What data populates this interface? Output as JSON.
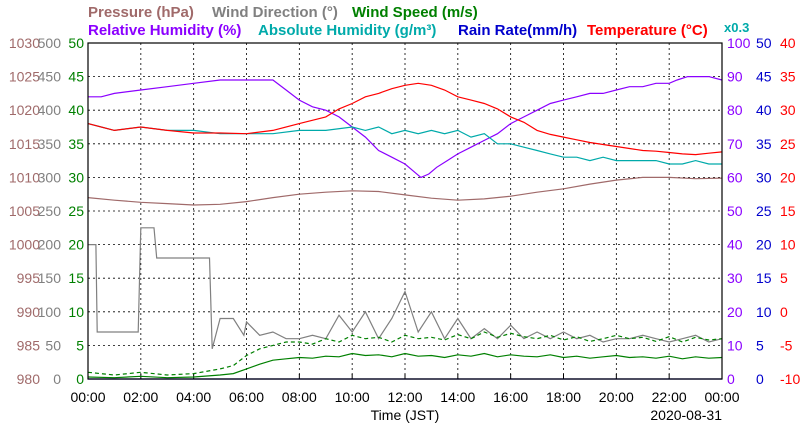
{
  "chart_data": {
    "type": "line",
    "date": "2020-08-31",
    "xlabel": "Time (JST)",
    "x_ticks": [
      "00:00",
      "02:00",
      "04:00",
      "06:00",
      "08:00",
      "10:00",
      "12:00",
      "14:00",
      "16:00",
      "18:00",
      "20:00",
      "22:00",
      "00:00"
    ],
    "xlim": [
      0,
      24
    ],
    "grid": true,
    "legend": {
      "row1": [
        {
          "label": "Pressure (hPa)",
          "color": "#a06a6a"
        },
        {
          "label": "Wind Direction (°)",
          "color": "#808080"
        },
        {
          "label": "Wind Speed (m/s)",
          "color": "#008000"
        }
      ],
      "row2": [
        {
          "label": "Relative Humidity (%)",
          "color": "#8b00ff"
        },
        {
          "label": "Absolute Humidity (g/m³)",
          "color": "#00aaaa"
        },
        {
          "label": "Rain Rate(mm/h)",
          "color": "#0000cc"
        },
        {
          "label": "Temperature (°C)",
          "color": "#ff0000"
        }
      ],
      "extra": {
        "label": "x0.3",
        "color": "#00aaaa"
      }
    },
    "axes": {
      "pressure": {
        "label": "Pressure (hPa)",
        "ticks": [
          "980",
          "985",
          "990",
          "995",
          "1000",
          "1005",
          "1010",
          "1015",
          "1020",
          "1025",
          "1030"
        ],
        "lim": [
          980,
          1030
        ],
        "color": "#a06a6a"
      },
      "wind_dir": {
        "label": "Wind Direction (°)",
        "ticks": [
          "0",
          "50",
          "100",
          "150",
          "200",
          "250",
          "300",
          "350",
          "400",
          "450",
          "500"
        ],
        "lim": [
          0,
          500
        ],
        "color": "#808080"
      },
      "wind_speed": {
        "label": "Wind Speed (m/s)",
        "ticks": [
          "0",
          "5",
          "10",
          "15",
          "20",
          "25",
          "30",
          "35",
          "40",
          "45",
          "50"
        ],
        "lim": [
          0,
          50
        ],
        "color": "#008000"
      },
      "humidity": {
        "label": "Relative Humidity (%)",
        "ticks": [
          "0",
          "10",
          "20",
          "30",
          "40",
          "50",
          "60",
          "70",
          "80",
          "90",
          "100"
        ],
        "lim": [
          0,
          100
        ],
        "color": "#8b00ff"
      },
      "rain": {
        "label": "Rain Rate(mm/h)",
        "ticks": [
          "0",
          "5",
          "10",
          "15",
          "20",
          "25",
          "30",
          "35",
          "40",
          "45",
          "50"
        ],
        "lim": [
          0,
          50
        ],
        "color": "#0000cc"
      },
      "temperature": {
        "label": "Temperature (°C)",
        "ticks": [
          "-10",
          "-5",
          "0",
          "5",
          "10",
          "15",
          "20",
          "25",
          "30",
          "35",
          "40"
        ],
        "lim": [
          -10,
          40
        ],
        "color": "#ff0000"
      }
    },
    "series": [
      {
        "name": "Pressure (hPa)",
        "axis": "pressure",
        "color": "#a06a6a",
        "x": [
          0,
          1,
          2,
          3,
          4,
          5,
          6,
          7,
          8,
          9,
          10,
          11,
          12,
          13,
          14,
          15,
          16,
          17,
          18,
          19,
          20,
          21,
          22,
          23,
          24
        ],
        "y": [
          1007,
          1006.6,
          1006.3,
          1006.1,
          1005.9,
          1006,
          1006.4,
          1007,
          1007.5,
          1007.8,
          1008,
          1007.9,
          1007.4,
          1006.9,
          1006.6,
          1006.8,
          1007.2,
          1007.8,
          1008.3,
          1009,
          1009.6,
          1010,
          1010,
          1009.8,
          1009.9
        ]
      },
      {
        "name": "Wind Direction (°)",
        "axis": "wind_dir",
        "color": "#808080",
        "x": [
          0,
          0.3,
          0.35,
          1,
          1.9,
          2,
          2.5,
          2.6,
          3,
          4,
          4.6,
          4.7,
          5.0,
          5.5,
          5.9,
          6,
          6.5,
          7,
          7.5,
          8,
          8.5,
          9,
          9.5,
          10,
          10.5,
          11,
          11.5,
          12,
          12.5,
          13,
          13.5,
          14,
          14.5,
          15,
          15.5,
          16,
          16.5,
          17,
          17.5,
          18,
          18.5,
          19,
          19.5,
          20,
          20.5,
          21,
          21.5,
          22,
          22.5,
          23,
          23.5,
          24
        ],
        "y": [
          200,
          200,
          70,
          70,
          70,
          225,
          225,
          180,
          180,
          180,
          180,
          45,
          90,
          90,
          65,
          85,
          65,
          70,
          60,
          60,
          65,
          60,
          95,
          70,
          100,
          60,
          90,
          130,
          70,
          100,
          60,
          90,
          60,
          75,
          60,
          80,
          60,
          70,
          60,
          70,
          60,
          65,
          55,
          60,
          60,
          65,
          60,
          55,
          60,
          65,
          55,
          60
        ]
      },
      {
        "name": "Wind Speed (m/s)",
        "axis": "wind_speed",
        "color": "#008000",
        "x": [
          0,
          1,
          2,
          3,
          4,
          5,
          5.5,
          6,
          6.5,
          7,
          7.5,
          8,
          8.5,
          9,
          9.5,
          10,
          10.5,
          11,
          11.5,
          12,
          12.5,
          13,
          13.5,
          14,
          14.5,
          15,
          15.5,
          16,
          16.5,
          17,
          17.5,
          18,
          18.5,
          19,
          19.5,
          20,
          20.5,
          21,
          21.5,
          22,
          22.5,
          23,
          23.5,
          24
        ],
        "y": [
          0.3,
          0.2,
          0.4,
          0.2,
          0.3,
          0.6,
          0.8,
          1.5,
          2.2,
          2.8,
          3,
          3.2,
          3.1,
          3.4,
          3.3,
          3.8,
          3.5,
          3.6,
          3.3,
          3.8,
          3.4,
          3.5,
          3.2,
          3.6,
          3.4,
          3.8,
          3.3,
          3.6,
          3.4,
          3.3,
          3.6,
          3.2,
          3.4,
          3.1,
          3.3,
          3.5,
          3.2,
          3.3,
          3.1,
          3.4,
          3.0,
          3.3,
          3.1,
          3.2
        ]
      },
      {
        "name": "Wind Speed Max (m/s)",
        "axis": "wind_speed",
        "color": "#008000",
        "dashed": true,
        "x": [
          0,
          1,
          2,
          3,
          4,
          5,
          5.5,
          6,
          6.5,
          7,
          7.5,
          8,
          8.5,
          9,
          9.5,
          10,
          10.5,
          11,
          11.5,
          12,
          12.5,
          13,
          13.5,
          14,
          14.5,
          15,
          15.5,
          16,
          16.5,
          17,
          17.5,
          18,
          18.5,
          19,
          19.5,
          20,
          20.5,
          21,
          21.5,
          22,
          22.5,
          23,
          23.5,
          24
        ],
        "y": [
          1,
          0.6,
          1,
          0.6,
          0.8,
          1.5,
          2,
          3.5,
          4.5,
          5,
          5.5,
          5.5,
          5.2,
          6,
          5.5,
          6.5,
          6,
          6.2,
          5.5,
          6.5,
          6,
          6.2,
          5.8,
          6.6,
          6,
          7,
          6.2,
          6.8,
          6.3,
          6,
          6.5,
          5.8,
          6.3,
          5.6,
          6,
          6.5,
          6,
          6.2,
          5.6,
          6.3,
          5.5,
          6.2,
          5.8,
          6
        ]
      },
      {
        "name": "Relative Humidity (%)",
        "axis": "humidity",
        "color": "#8b00ff",
        "x": [
          0,
          0.5,
          1,
          2,
          3,
          4,
          5,
          6,
          6.5,
          7,
          7.5,
          8,
          8.5,
          9,
          9.5,
          10,
          10.5,
          11,
          11.5,
          12,
          12.3,
          12.6,
          12.9,
          13.2,
          13.6,
          14,
          14.5,
          15,
          15.5,
          16,
          16.5,
          17,
          17.5,
          18,
          18.5,
          19,
          19.5,
          20,
          20.5,
          21,
          21.5,
          22,
          22.3,
          22.7,
          23,
          23.5,
          24
        ],
        "y": [
          84,
          84,
          85,
          86,
          87,
          88,
          89,
          89,
          89,
          89,
          86,
          83,
          81,
          80,
          78,
          75,
          72,
          68,
          66,
          64,
          62,
          60,
          61,
          63,
          65,
          67,
          69,
          71,
          73,
          76,
          78,
          80,
          82,
          83,
          84,
          85,
          85,
          86,
          87,
          87,
          88,
          88,
          89,
          90,
          90,
          90,
          89
        ]
      },
      {
        "name": "Absolute Humidity (g/m³)",
        "axis": "humidity",
        "color": "#00aaaa",
        "x": [
          0,
          0.5,
          1,
          2,
          3,
          4,
          5,
          6,
          7,
          8,
          9,
          10,
          10.5,
          11,
          11.5,
          12,
          12.5,
          13,
          13.5,
          14,
          14.5,
          15,
          15.5,
          16,
          16.5,
          17,
          17.5,
          18,
          18.5,
          19,
          19.5,
          20,
          20.5,
          21,
          21.5,
          22,
          22.5,
          23,
          23.5,
          24
        ],
        "y": [
          76,
          75,
          74,
          75,
          74,
          74,
          73,
          73,
          73,
          74,
          74,
          75,
          74,
          75,
          73,
          74,
          73,
          74,
          73,
          74,
          72,
          73,
          70,
          70,
          69,
          68,
          67,
          66,
          66,
          65,
          66,
          65,
          65,
          65,
          65,
          64,
          64,
          65,
          64,
          64
        ]
      },
      {
        "name": "Temperature (°C)",
        "axis": "temperature",
        "color": "#ff0000",
        "x": [
          0,
          1,
          2,
          3,
          4,
          5,
          6,
          7,
          8,
          9,
          9.5,
          10,
          10.5,
          11,
          11.5,
          12,
          12.5,
          13,
          13.5,
          14,
          14.5,
          15,
          15.5,
          16,
          16.5,
          17,
          17.5,
          18,
          18.5,
          19,
          19.5,
          20,
          20.5,
          21,
          21.5,
          22,
          22.5,
          23,
          23.5,
          24
        ],
        "y": [
          28,
          27,
          27.5,
          27,
          26.6,
          26.6,
          26.5,
          27,
          28,
          29,
          30.2,
          31,
          32,
          32.5,
          33.2,
          33.7,
          34,
          33.7,
          33,
          32,
          31.5,
          31,
          30.2,
          29,
          28.2,
          27,
          26.4,
          26,
          25.6,
          25.2,
          24.9,
          24.6,
          24.3,
          24,
          23.9,
          23.7,
          23.5,
          23.4,
          23.6,
          23.8
        ]
      },
      {
        "name": "Rain Rate(mm/h)",
        "axis": "rain",
        "color": "#0000cc",
        "x": [
          0,
          24
        ],
        "y": [
          0,
          0
        ]
      }
    ]
  }
}
